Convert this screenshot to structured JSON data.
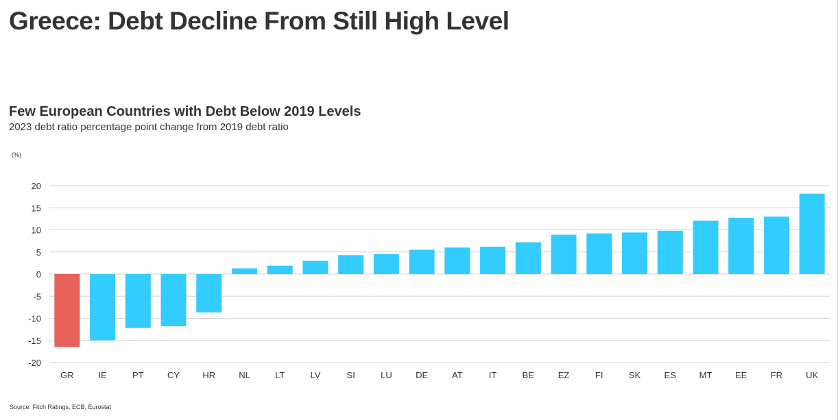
{
  "page": {
    "title": "Greece: Debt Decline From Still High Level",
    "source": "Source: Fitch Ratings, ECB, Eurostat"
  },
  "chart_data": {
    "type": "bar",
    "title": "Few European Countries with Debt Below 2019 Levels",
    "subtitle": "2023 debt ratio percentage point change from 2019 debt ratio",
    "ylabel": "(%)",
    "xlabel": "",
    "ylim": [
      -20,
      20
    ],
    "yticks": [
      20,
      15,
      10,
      5,
      0,
      -5,
      -10,
      -15,
      -20
    ],
    "grid": true,
    "legend": "none",
    "categories": [
      "GR",
      "IE",
      "PT",
      "CY",
      "HR",
      "NL",
      "LT",
      "LV",
      "SI",
      "LU",
      "DE",
      "AT",
      "IT",
      "BE",
      "EZ",
      "FI",
      "SK",
      "ES",
      "MT",
      "EE",
      "FR",
      "UK"
    ],
    "values": [
      -16.5,
      -15.0,
      -12.2,
      -11.8,
      -8.7,
      1.3,
      1.9,
      3.0,
      4.3,
      4.5,
      5.5,
      6.0,
      6.2,
      7.2,
      8.9,
      9.2,
      9.4,
      9.8,
      12.1,
      12.7,
      13.0,
      18.2
    ],
    "colors": {
      "highlight": "#e8605a",
      "default": "#33ccff",
      "grid": "#d0d0d0",
      "axis_text": "#333333"
    },
    "highlight_category": "GR"
  }
}
